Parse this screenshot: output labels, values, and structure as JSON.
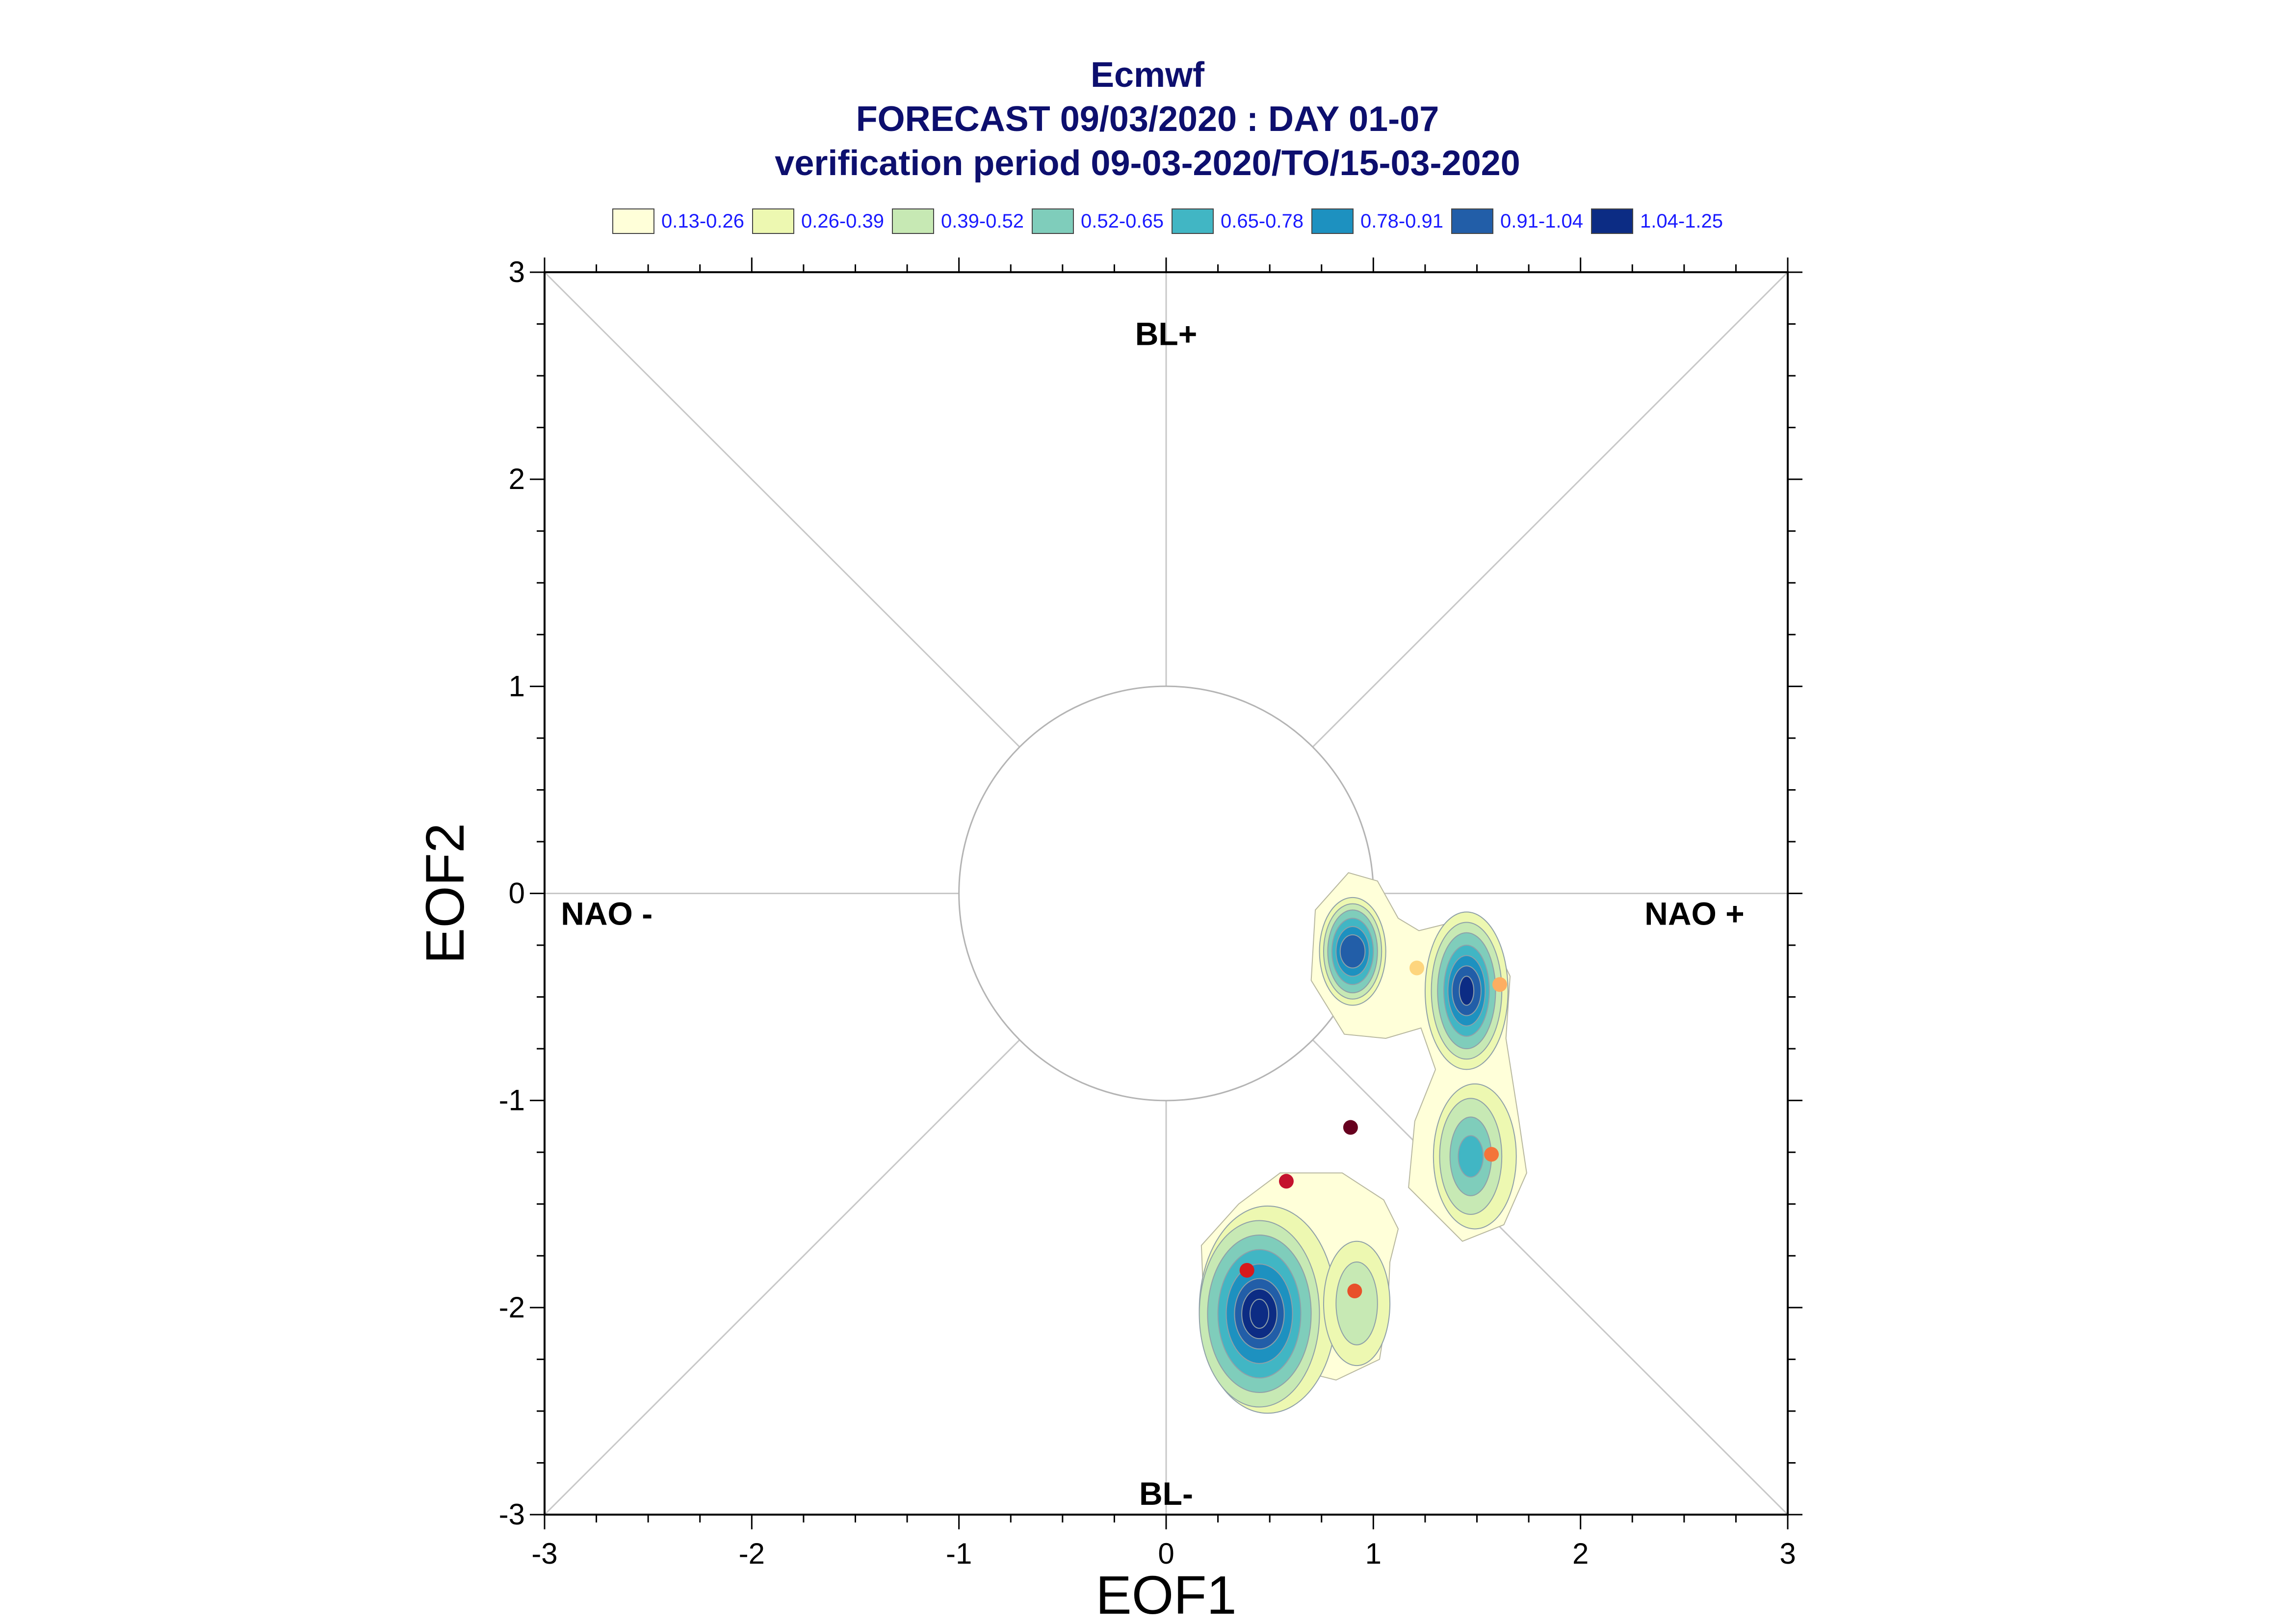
{
  "titles": [
    "Ecmwf",
    "FORECAST 09/03/2020 : DAY 01-07",
    "verification period 09-03-2020/TO/15-03-2020"
  ],
  "legend": {
    "items": [
      {
        "label": "0.13-0.26",
        "color": "#ffffd9"
      },
      {
        "label": "0.26-0.39",
        "color": "#edf8b1"
      },
      {
        "label": "0.39-0.52",
        "color": "#c7e9b4"
      },
      {
        "label": "0.52-0.65",
        "color": "#7fcdbb"
      },
      {
        "label": "0.65-0.78",
        "color": "#41b6c4"
      },
      {
        "label": "0.78-0.91",
        "color": "#1d91c0"
      },
      {
        "label": "0.91-1.04",
        "color": "#225ea8"
      },
      {
        "label": "1.04-1.25",
        "color": "#0c2c84"
      }
    ]
  },
  "chart_data": {
    "type": "scatter",
    "title": "Ecmwf",
    "subtitle": [
      "FORECAST 09/03/2020 : DAY 01-07",
      "verification period 09-03-2020/TO/15-03-2020"
    ],
    "xlabel": "EOF1",
    "ylabel": "EOF2",
    "xlim": [
      -3,
      3
    ],
    "ylim": [
      -3,
      3
    ],
    "xticks": [
      "-3",
      "-2",
      "-1",
      "0",
      "1",
      "2",
      "3"
    ],
    "yticks": [
      "-3",
      "-2",
      "-1",
      "0",
      "1",
      "2",
      "3"
    ],
    "grid": false,
    "reference_circle_radius": 1,
    "regime_labels": [
      {
        "text": "BL+",
        "x": 0,
        "y": 2.7
      },
      {
        "text": "BL-",
        "x": 0,
        "y": -2.9
      },
      {
        "text": "NAO -",
        "x": -2.7,
        "y": -0.1
      },
      {
        "text": "NAO +",
        "x": 2.55,
        "y": -0.1
      }
    ],
    "density_contours": {
      "levels": [
        "0.13-0.26",
        "0.26-0.39",
        "0.39-0.52",
        "0.52-0.65",
        "0.65-0.78",
        "0.78-0.91",
        "0.91-1.04",
        "1.04-1.25"
      ],
      "colors": [
        "#ffffd9",
        "#edf8b1",
        "#c7e9b4",
        "#7fcdbb",
        "#41b6c4",
        "#1d91c0",
        "#225ea8",
        "#0c2c84"
      ],
      "peaks": [
        {
          "x": 0.45,
          "y": -2.03,
          "peak_level": 8
        },
        {
          "x": 0.9,
          "y": -0.28,
          "peak_level": 6
        },
        {
          "x": 1.45,
          "y": -0.47,
          "peak_level": 7
        },
        {
          "x": 1.47,
          "y": -1.27,
          "peak_level": 5
        },
        {
          "x": 0.92,
          "y": -1.98,
          "peak_level": 3
        }
      ]
    },
    "points": [
      {
        "x": 1.21,
        "y": -0.36,
        "color": "#fdd57e"
      },
      {
        "x": 1.61,
        "y": -0.44,
        "color": "#fdae61"
      },
      {
        "x": 0.89,
        "y": -1.13,
        "color": "#67001f"
      },
      {
        "x": 0.58,
        "y": -1.39,
        "color": "#c4122e"
      },
      {
        "x": 1.57,
        "y": -1.26,
        "color": "#f4743a"
      },
      {
        "x": 0.39,
        "y": -1.82,
        "color": "#d7191c"
      },
      {
        "x": 0.91,
        "y": -1.92,
        "color": "#e8502a"
      }
    ]
  }
}
